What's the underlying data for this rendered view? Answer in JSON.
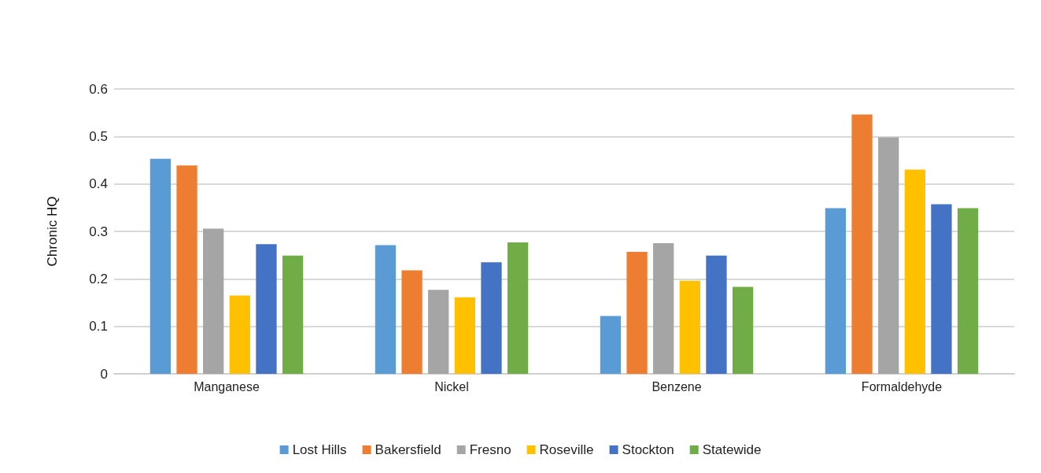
{
  "chart_data": {
    "type": "bar",
    "ylabel": "Chronic HQ",
    "categories": [
      "Manganese",
      "Nickel",
      "Benzene",
      "Formaldehyde"
    ],
    "series": [
      {
        "name": "Lost Hills",
        "color": "#5b9bd5",
        "values": [
          0.453,
          0.271,
          0.122,
          0.349
        ]
      },
      {
        "name": "Bakersfield",
        "color": "#ed7d31",
        "values": [
          0.439,
          0.218,
          0.257,
          0.546
        ]
      },
      {
        "name": "Fresno",
        "color": "#a5a5a5",
        "values": [
          0.306,
          0.177,
          0.275,
          0.498
        ]
      },
      {
        "name": "Roseville",
        "color": "#ffc000",
        "values": [
          0.165,
          0.161,
          0.196,
          0.43
        ]
      },
      {
        "name": "Stockton",
        "color": "#4472c4",
        "values": [
          0.273,
          0.235,
          0.249,
          0.357
        ]
      },
      {
        "name": "Statewide",
        "color": "#70ad47",
        "values": [
          0.249,
          0.277,
          0.183,
          0.349
        ]
      }
    ],
    "ylim": [
      0,
      0.6
    ],
    "yticks": [
      0,
      0.1,
      0.2,
      0.3,
      0.4,
      0.5,
      0.6
    ],
    "grid": "y",
    "legend": "bottom"
  }
}
